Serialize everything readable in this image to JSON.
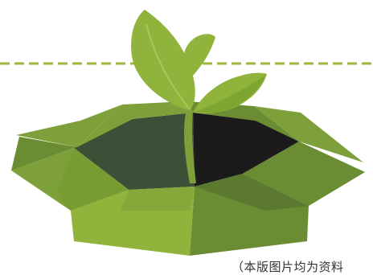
{
  "illustration": {
    "subject": "sprout-in-open-box",
    "colors": {
      "leaf": "#8fb33b",
      "leaf_dark": "#6f9a2a",
      "box_light": "#7ea03a",
      "box_mid": "#6a8c33",
      "box_dark": "#4e6b2b",
      "box_interior": "#3e4f37",
      "box_hole": "#1b1b1b",
      "dashed_line": "#9cb83f"
    }
  },
  "caption": {
    "text": "（本版图片均为资料"
  }
}
